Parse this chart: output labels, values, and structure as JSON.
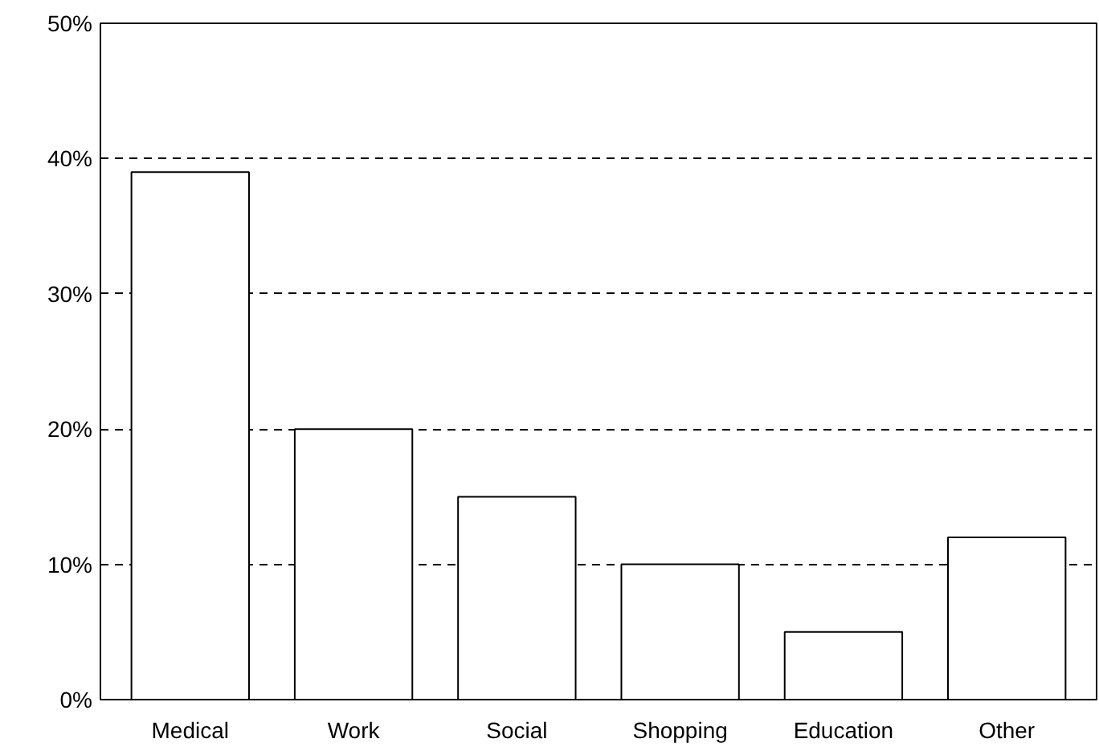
{
  "chart_data": {
    "type": "bar",
    "categories": [
      "Medical",
      "Work",
      "Social",
      "Shopping",
      "Education",
      "Other"
    ],
    "values": [
      39,
      20,
      15,
      10,
      5,
      12
    ],
    "color": "#ffffff",
    "ylim": [
      0,
      50
    ],
    "yticks": [
      {
        "value": 0,
        "label": "0%"
      },
      {
        "value": 10,
        "label": "10%"
      },
      {
        "value": 20,
        "label": "20%"
      },
      {
        "value": 30,
        "label": "30%"
      },
      {
        "value": 40,
        "label": "40%"
      },
      {
        "value": 50,
        "label": "50%"
      }
    ],
    "grid": "y"
  }
}
